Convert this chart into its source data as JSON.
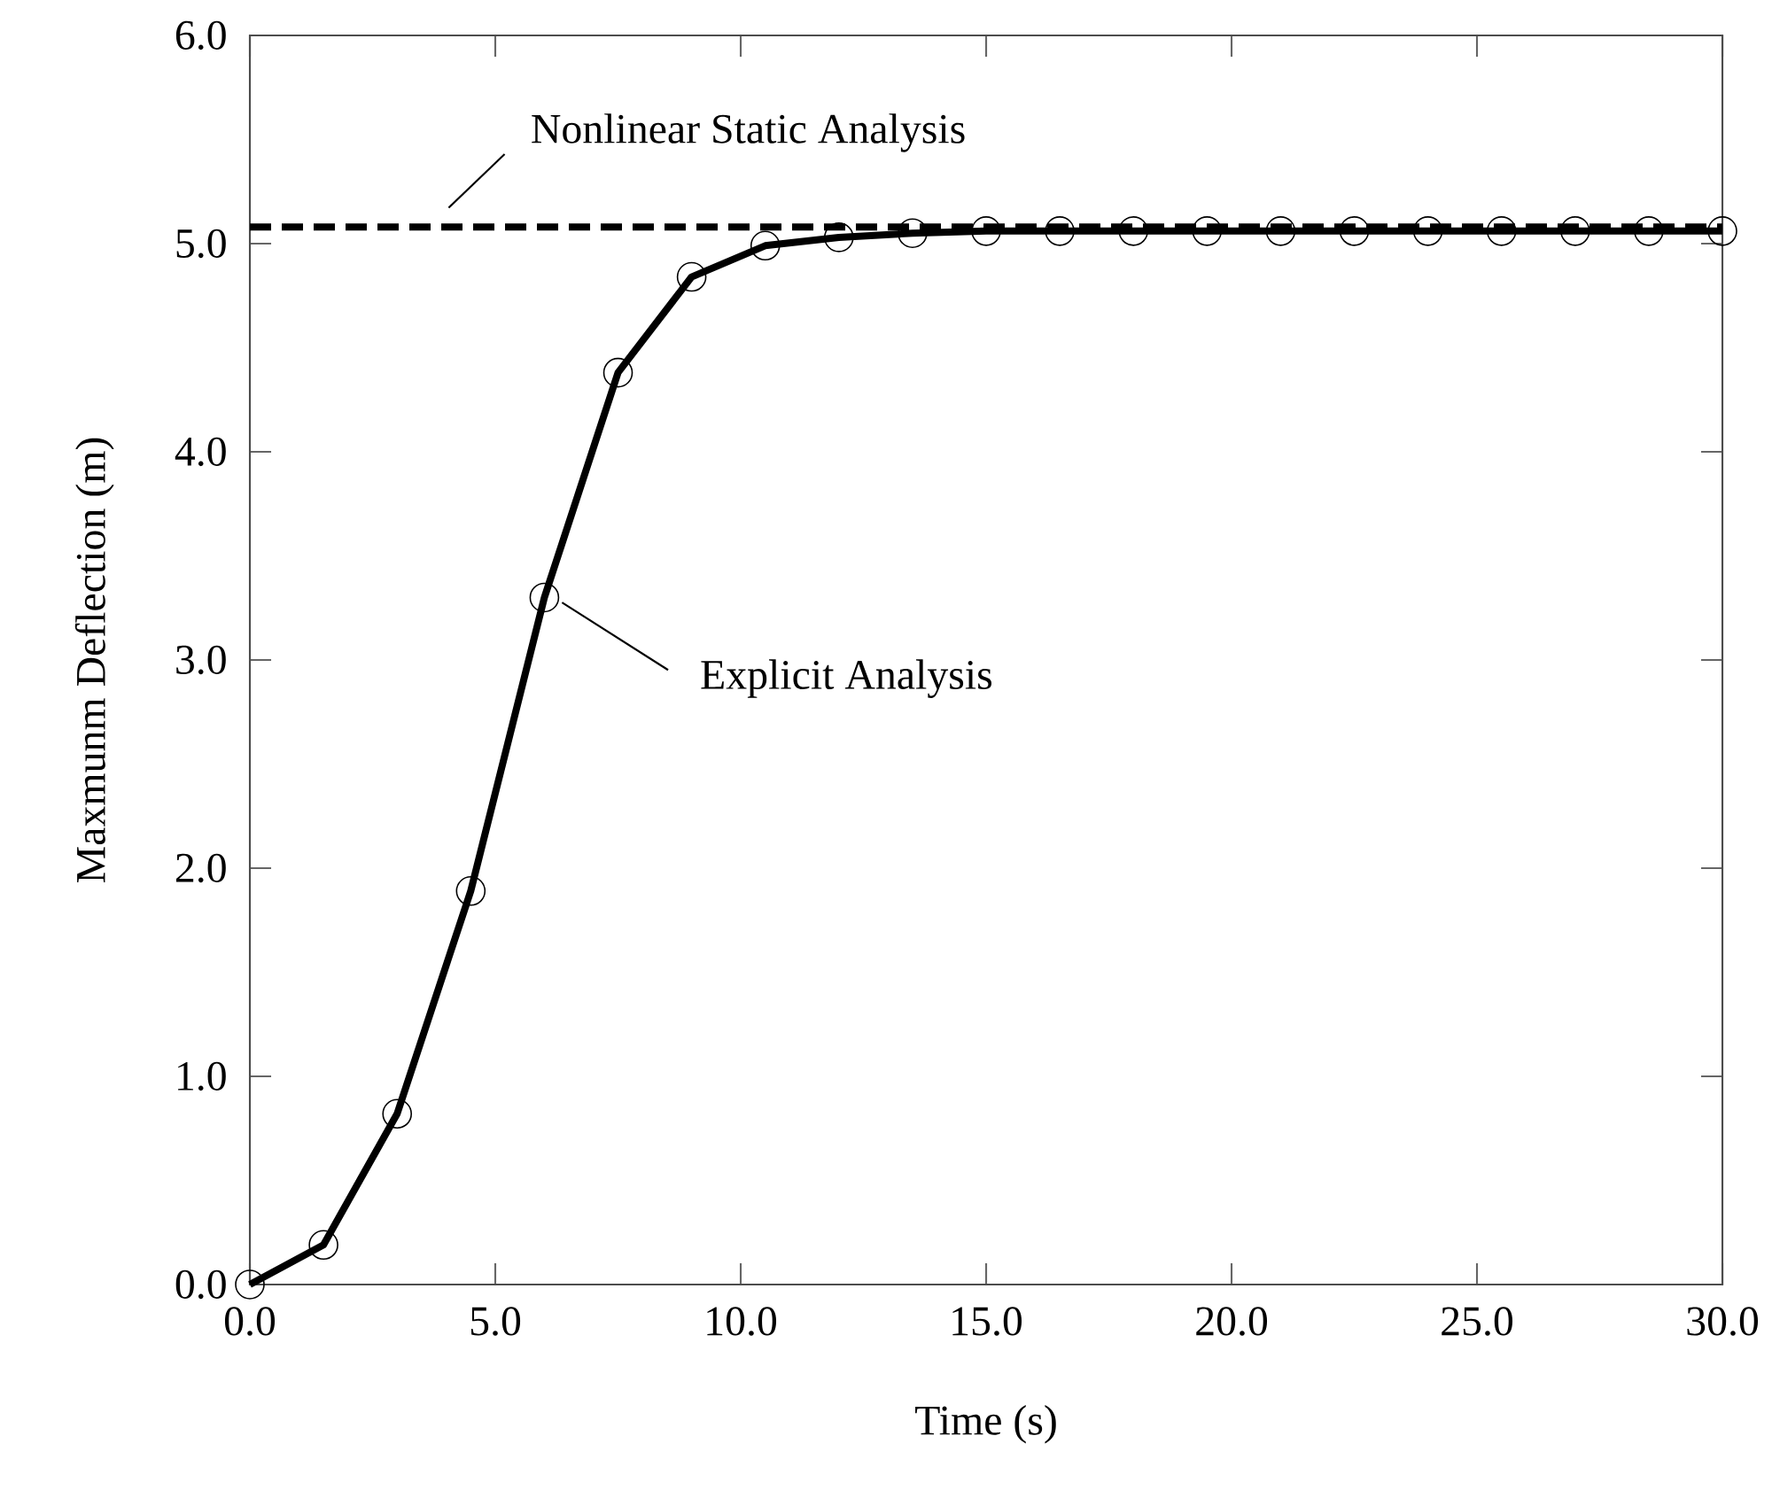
{
  "chart_data": {
    "type": "line",
    "xlabel": "Time (s)",
    "ylabel": "Maxmunm Deflection (m)",
    "x": [
      0,
      1.5,
      3,
      4.5,
      6,
      7.5,
      9,
      10.5,
      12,
      13.5,
      15,
      16.5,
      18,
      19.5,
      21,
      22.5,
      24,
      25.5,
      27,
      28.5,
      30
    ],
    "series": [
      {
        "name": "Explicit Analysis",
        "color": "#000000",
        "values": [
          0,
          0.19,
          0.82,
          1.89,
          3.3,
          4.38,
          4.84,
          4.99,
          5.03,
          5.05,
          5.06,
          5.06,
          5.06,
          5.06,
          5.06,
          5.06,
          5.06,
          5.06,
          5.06,
          5.06,
          5.06
        ]
      }
    ],
    "ref_lines": [
      {
        "axis": "y",
        "value": 5.08,
        "label": "Nonlinear Static Analysis",
        "color": "#000000",
        "line_style": "dashed"
      }
    ],
    "xlim": [
      0,
      30
    ],
    "ylim": [
      0,
      6
    ],
    "xticks": [
      {
        "value": 0,
        "label": "0.0"
      },
      {
        "value": 5,
        "label": "5.0"
      },
      {
        "value": 10,
        "label": "10.0"
      },
      {
        "value": 15,
        "label": "15.0"
      },
      {
        "value": 20,
        "label": "20.0"
      },
      {
        "value": 25,
        "label": "25.0"
      },
      {
        "value": 30,
        "label": "30.0"
      }
    ],
    "yticks": [
      {
        "value": 0,
        "label": "0.0"
      },
      {
        "value": 1,
        "label": "1.0"
      },
      {
        "value": 2,
        "label": "2.0"
      },
      {
        "value": 3,
        "label": "3.0"
      },
      {
        "value": 4,
        "label": "4.0"
      },
      {
        "value": 5,
        "label": "5.0"
      },
      {
        "value": 6,
        "label": "6.0"
      }
    ],
    "marker": "circle",
    "line_style": "solid",
    "grid": false,
    "legend": false
  }
}
